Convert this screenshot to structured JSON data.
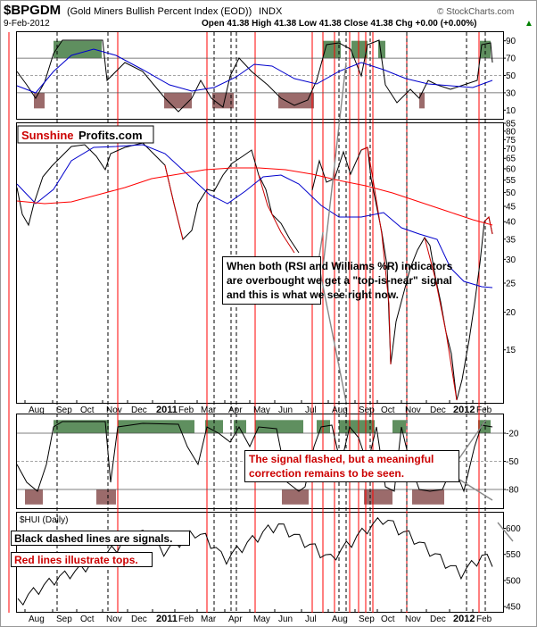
{
  "header": {
    "symbol": "$BPGDM",
    "name": "(Gold Miners Bullish Percent Index (EOD))",
    "exchange": "INDX",
    "date": "9-Feb-2012",
    "quote": "Open 41.38  High 41.38  Low 41.38  Close 41.38  Chg +0.00 (+0.00%)",
    "quote_arrow": "▲",
    "copyright": "© StockCharts.com"
  },
  "watermark": {
    "brand_red": "Sunshine",
    "brand_black": "Profits.com"
  },
  "annotations": {
    "main": [
      "When both (RSI and Williams %R) indicators",
      "are overbought we get a \"top-is-near\" signal",
      "and this is what we see right now."
    ],
    "williams": [
      "The signal flashed, but a meaningful",
      "correction remains to be seen."
    ],
    "hui_1": "Black dashed lines are signals.",
    "hui_2": "Red lines illustrate tops."
  },
  "hui_label": "$HUI (Daily)",
  "colors": {
    "price": "#000000",
    "fast_ma": "#0000cc",
    "slow_ma": "#ff0000",
    "decline": "#cc0000",
    "overbought": "#5f8f5f",
    "oversold": "#9b6b6b"
  },
  "chart_data": [
    {
      "type": "line",
      "name": "RSI",
      "yticks": [
        10,
        30,
        50,
        70,
        90
      ],
      "ylim": [
        0,
        100
      ]
    },
    {
      "type": "line",
      "name": "BPGDM price",
      "yticks": [
        15,
        20,
        25,
        30,
        35,
        40,
        45,
        50,
        55,
        60,
        65,
        70,
        75,
        80,
        85
      ],
      "ylim": [
        10,
        85
      ]
    },
    {
      "type": "line",
      "name": "Williams %R",
      "yticks": [
        -20,
        -50,
        -80
      ],
      "ylim": [
        -100,
        0
      ]
    },
    {
      "type": "line",
      "name": "HUI",
      "yticks": [
        450,
        500,
        550,
        600
      ],
      "ylim": [
        440,
        630
      ]
    }
  ],
  "xaxis": {
    "labels": [
      "Aug",
      "Sep",
      "Oct",
      "Nov",
      "Dec",
      "2011",
      "Feb",
      "Mar",
      "Apr",
      "May",
      "Jun",
      "Jul",
      "Aug",
      "Sep",
      "Oct",
      "Nov",
      "Dec",
      "2012",
      "Feb"
    ],
    "bold": [
      "2011",
      "2012"
    ]
  }
}
